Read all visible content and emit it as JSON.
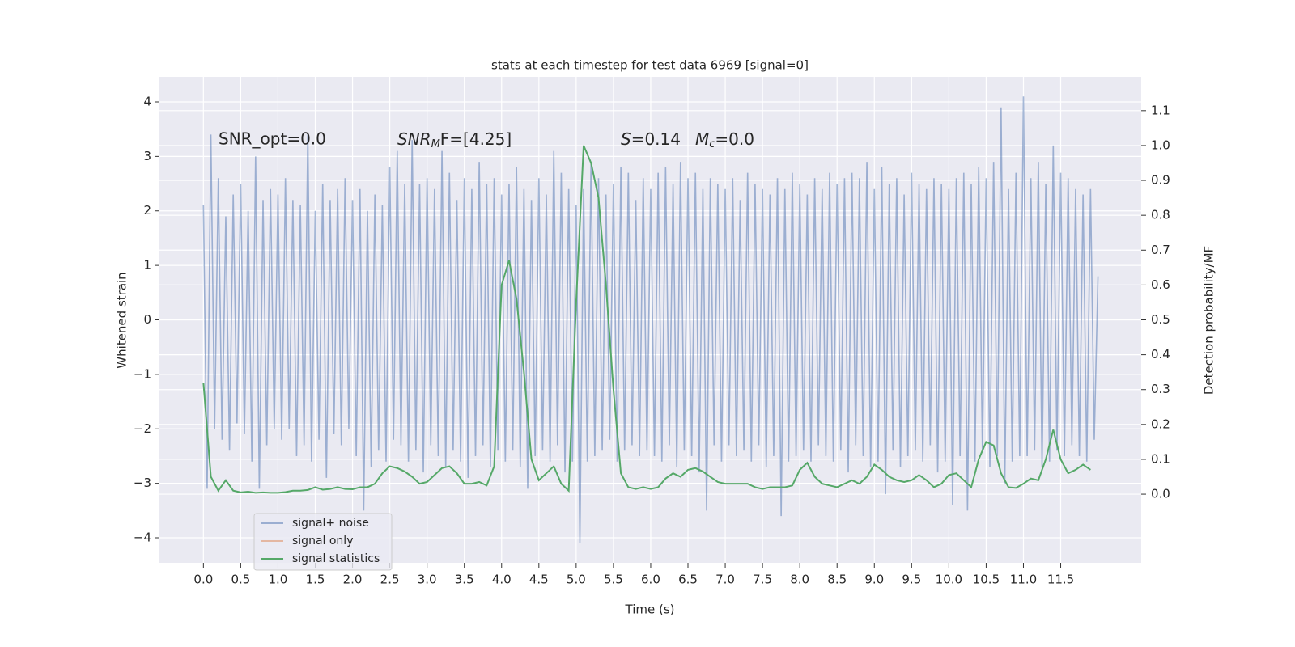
{
  "chart_data": {
    "type": "line",
    "title": "stats at each timestep for test data 6969 [signal=0]",
    "xlabel": "Time (s)",
    "ylabel": "Whitened strain",
    "y2label": "Detection probability/MF",
    "annotations": [
      "SNR_opt=0.0",
      [
        "SNR",
        "M",
        "F=[4.25]"
      ],
      [
        "S",
        "=0.14"
      ],
      [
        "M",
        "c",
        "=0.0"
      ]
    ],
    "xlim": [
      -0.59,
      12.58
    ],
    "ylim": [
      -4.46,
      4.46
    ],
    "y2lim": [
      -0.197,
      1.197
    ],
    "xticks": [
      {
        "value": 0,
        "label": "0.0"
      },
      {
        "value": 0.5,
        "label": "0.5"
      },
      {
        "value": 1,
        "label": "1.0"
      },
      {
        "value": 1.5,
        "label": "1.5"
      },
      {
        "value": 2,
        "label": "2.0"
      },
      {
        "value": 2.5,
        "label": "2.5"
      },
      {
        "value": 3,
        "label": "3.0"
      },
      {
        "value": 3.5,
        "label": "3.5"
      },
      {
        "value": 4,
        "label": "4.0"
      },
      {
        "value": 4.5,
        "label": "4.5"
      },
      {
        "value": 5,
        "label": "5.0"
      },
      {
        "value": 5.5,
        "label": "5.5"
      },
      {
        "value": 6,
        "label": "6.0"
      },
      {
        "value": 6.5,
        "label": "6.5"
      },
      {
        "value": 7,
        "label": "7.0"
      },
      {
        "value": 7.5,
        "label": "7.5"
      },
      {
        "value": 8,
        "label": "8.0"
      },
      {
        "value": 8.5,
        "label": "8.5"
      },
      {
        "value": 9,
        "label": "9.0"
      },
      {
        "value": 9.5,
        "label": "9.5"
      },
      {
        "value": 10,
        "label": "10.0"
      },
      {
        "value": 10.5,
        "label": "10.5"
      },
      {
        "value": 11,
        "label": "11.0"
      },
      {
        "value": 11.5,
        "label": "11.5"
      }
    ],
    "yticks": [
      {
        "value": -4,
        "label": "−4"
      },
      {
        "value": -3,
        "label": "−3"
      },
      {
        "value": -2,
        "label": "−2"
      },
      {
        "value": -1,
        "label": "−1"
      },
      0,
      1,
      2,
      3,
      4
    ],
    "y2ticks": [
      {
        "value": 0,
        "label": "0.0"
      },
      {
        "value": 0.1,
        "label": "0.1"
      },
      {
        "value": 0.2,
        "label": "0.2"
      },
      {
        "value": 0.3,
        "label": "0.3"
      },
      {
        "value": 0.4,
        "label": "0.4"
      },
      {
        "value": 0.5,
        "label": "0.5"
      },
      {
        "value": 0.6,
        "label": "0.6"
      },
      {
        "value": 0.7,
        "label": "0.7"
      },
      {
        "value": 0.8,
        "label": "0.8"
      },
      {
        "value": 0.9,
        "label": "0.9"
      },
      {
        "value": 1,
        "label": "1.0"
      },
      {
        "value": 1.1,
        "label": "1.1"
      }
    ],
    "grid": true,
    "legend": "lower left",
    "series": [
      {
        "name": "signal+ noise",
        "color": "#4c72b0",
        "x": [
          0,
          0.05,
          0.1,
          0.15,
          0.2,
          0.25,
          0.3,
          0.35,
          0.4,
          0.45,
          0.5,
          0.55,
          0.6,
          0.65,
          0.7,
          0.75,
          0.8,
          0.85,
          0.9,
          0.95,
          1,
          1.05,
          1.1,
          1.15,
          1.2,
          1.25,
          1.3,
          1.35,
          1.4,
          1.45,
          1.5,
          1.55,
          1.6,
          1.65,
          1.7,
          1.75,
          1.8,
          1.85,
          1.9,
          1.95,
          2,
          2.05,
          2.1,
          2.15,
          2.2,
          2.25,
          2.3,
          2.35,
          2.4,
          2.45,
          2.5,
          2.55,
          2.6,
          2.65,
          2.7,
          2.75,
          2.8,
          2.85,
          2.9,
          2.95,
          3,
          3.05,
          3.1,
          3.15,
          3.2,
          3.25,
          3.3,
          3.35,
          3.4,
          3.45,
          3.5,
          3.55,
          3.6,
          3.65,
          3.7,
          3.75,
          3.8,
          3.85,
          3.9,
          3.95,
          4,
          4.05,
          4.1,
          4.15,
          4.2,
          4.25,
          4.3,
          4.35,
          4.4,
          4.45,
          4.5,
          4.55,
          4.6,
          4.65,
          4.7,
          4.75,
          4.8,
          4.85,
          4.9,
          4.95,
          5,
          5.05,
          5.1,
          5.15,
          5.2,
          5.25,
          5.3,
          5.35,
          5.4,
          5.45,
          5.5,
          5.55,
          5.6,
          5.65,
          5.7,
          5.75,
          5.8,
          5.85,
          5.9,
          5.95,
          6,
          6.05,
          6.1,
          6.15,
          6.2,
          6.25,
          6.3,
          6.35,
          6.4,
          6.45,
          6.5,
          6.55,
          6.6,
          6.65,
          6.7,
          6.75,
          6.8,
          6.85,
          6.9,
          6.95,
          7,
          7.05,
          7.1,
          7.15,
          7.2,
          7.25,
          7.3,
          7.35,
          7.4,
          7.45,
          7.5,
          7.55,
          7.6,
          7.65,
          7.7,
          7.75,
          7.8,
          7.85,
          7.9,
          7.95,
          8,
          8.05,
          8.1,
          8.15,
          8.2,
          8.25,
          8.3,
          8.35,
          8.4,
          8.45,
          8.5,
          8.55,
          8.6,
          8.65,
          8.7,
          8.75,
          8.8,
          8.85,
          8.9,
          8.95,
          9,
          9.05,
          9.1,
          9.15,
          9.2,
          9.25,
          9.3,
          9.35,
          9.4,
          9.45,
          9.5,
          9.55,
          9.6,
          9.65,
          9.7,
          9.75,
          9.8,
          9.85,
          9.9,
          9.95,
          10,
          10.05,
          10.1,
          10.15,
          10.2,
          10.25,
          10.3,
          10.35,
          10.4,
          10.45,
          10.5,
          10.55,
          10.6,
          10.65,
          10.7,
          10.75,
          10.8,
          10.85,
          10.9,
          10.95,
          11,
          11.05,
          11.1,
          11.15,
          11.2,
          11.25,
          11.3,
          11.35,
          11.4,
          11.45,
          11.5,
          11.55,
          11.6,
          11.65,
          11.7,
          11.75,
          11.8,
          11.85,
          11.9,
          11.95,
          12
        ],
        "values": [
          2.1,
          -3.1,
          3.4,
          -2.0,
          2.6,
          -2.2,
          1.9,
          -2.4,
          2.3,
          -1.9,
          2.5,
          -2.1,
          2.0,
          -2.6,
          3.0,
          -3.1,
          2.2,
          -2.3,
          2.4,
          -2.0,
          2.3,
          -2.2,
          2.6,
          -2.0,
          2.2,
          -2.5,
          2.1,
          -2.3,
          3.4,
          -2.6,
          2.0,
          -2.2,
          2.5,
          -2.9,
          2.2,
          -2.1,
          2.4,
          -2.3,
          2.6,
          -2.0,
          2.2,
          -2.5,
          2.4,
          -3.5,
          2.0,
          -2.7,
          2.3,
          -2.4,
          2.1,
          -2.6,
          2.8,
          -2.2,
          3.1,
          -2.3,
          2.5,
          -2.6,
          3.3,
          -2.4,
          2.5,
          -2.8,
          2.6,
          -2.3,
          2.4,
          -2.5,
          3.1,
          -2.7,
          2.7,
          -2.4,
          2.2,
          -2.6,
          2.6,
          -2.9,
          2.4,
          -2.5,
          2.9,
          -2.3,
          2.5,
          -2.7,
          2.6,
          -2.4,
          2.3,
          -2.6,
          2.5,
          -2.4,
          2.8,
          -2.7,
          2.4,
          -3.1,
          2.2,
          -2.5,
          2.6,
          -2.4,
          2.3,
          -2.6,
          3.1,
          -2.3,
          2.7,
          -2.8,
          2.4,
          -2.6,
          2.1,
          -4.1,
          2.4,
          -2.6,
          2.9,
          -2.5,
          2.6,
          -2.4,
          2.3,
          -2.2,
          2.5,
          -2.6,
          2.8,
          -2.4,
          2.7,
          -2.3,
          2.2,
          -2.5,
          2.6,
          -2.4,
          2.4,
          -2.5,
          2.7,
          -2.6,
          2.8,
          -2.3,
          2.5,
          -2.7,
          2.9,
          -2.4,
          2.6,
          -2.5,
          2.7,
          -2.8,
          2.4,
          -3.5,
          2.6,
          -2.3,
          2.5,
          -2.6,
          2.4,
          -2.3,
          2.6,
          -2.5,
          2.2,
          -2.4,
          2.7,
          -2.6,
          2.5,
          -2.3,
          2.4,
          -2.7,
          2.3,
          -2.5,
          2.6,
          -3.6,
          2.4,
          -2.6,
          2.7,
          -2.5,
          2.5,
          -2.4,
          2.3,
          -2.6,
          2.6,
          -2.3,
          2.4,
          -2.5,
          2.7,
          -2.6,
          2.5,
          -2.4,
          2.6,
          -2.8,
          2.7,
          -2.3,
          2.6,
          -2.5,
          2.9,
          -2.7,
          2.4,
          -2.6,
          2.8,
          -3.2,
          2.5,
          -2.4,
          2.6,
          -2.7,
          2.3,
          -2.5,
          2.7,
          -2.4,
          2.5,
          -2.6,
          2.4,
          -2.3,
          2.6,
          -2.8,
          2.5,
          -2.6,
          2.4,
          -3.4,
          2.6,
          -2.5,
          2.7,
          -3.5,
          2.5,
          -2.6,
          2.8,
          -2.4,
          2.6,
          -2.7,
          2.9,
          -2.5,
          3.9,
          -3.0,
          2.4,
          -2.6,
          2.7,
          -2.5,
          4.1,
          -2.5,
          2.6,
          -2.4,
          2.9,
          -2.7,
          2.5,
          -2.6,
          3.2,
          -2.4,
          2.7,
          -2.5,
          2.6,
          -2.3,
          2.4,
          -2.5,
          2.3,
          -2.6,
          2.4,
          -2.2,
          0.8
        ]
      },
      {
        "name": "signal only",
        "color": "#dd8452"
      },
      {
        "name": "signal statistics",
        "color": "#55a868",
        "axis": "y2",
        "x": [
          0,
          0.1,
          0.2,
          0.3,
          0.4,
          0.5,
          0.6,
          0.7,
          0.8,
          0.9,
          1,
          1.1,
          1.2,
          1.3,
          1.4,
          1.5,
          1.6,
          1.7,
          1.8,
          1.9,
          2,
          2.1,
          2.2,
          2.3,
          2.4,
          2.5,
          2.6,
          2.7,
          2.8,
          2.9,
          3,
          3.1,
          3.2,
          3.3,
          3.4,
          3.5,
          3.6,
          3.7,
          3.8,
          3.9,
          4,
          4.1,
          4.2,
          4.3,
          4.4,
          4.5,
          4.6,
          4.7,
          4.8,
          4.9,
          5,
          5.1,
          5.2,
          5.3,
          5.4,
          5.5,
          5.6,
          5.7,
          5.8,
          5.9,
          6,
          6.1,
          6.2,
          6.3,
          6.4,
          6.5,
          6.6,
          6.7,
          6.8,
          6.9,
          7,
          7.1,
          7.2,
          7.3,
          7.4,
          7.5,
          7.6,
          7.7,
          7.8,
          7.9,
          8,
          8.1,
          8.2,
          8.3,
          8.4,
          8.5,
          8.6,
          8.7,
          8.8,
          8.9,
          9,
          9.1,
          9.2,
          9.3,
          9.4,
          9.5,
          9.6,
          9.7,
          9.8,
          9.9,
          10,
          10.1,
          10.2,
          10.3,
          10.4,
          10.5,
          10.6,
          10.7,
          10.8,
          10.9,
          11,
          11.1,
          11.2,
          11.3,
          11.4,
          11.5,
          11.6,
          11.7,
          11.8,
          11.9
        ],
        "values": [
          0.32,
          0.05,
          0.01,
          0.04,
          0.01,
          0.005,
          0.007,
          0.004,
          0.005,
          0.004,
          0.004,
          0.006,
          0.01,
          0.01,
          0.012,
          0.02,
          0.013,
          0.015,
          0.02,
          0.015,
          0.014,
          0.02,
          0.02,
          0.03,
          0.06,
          0.08,
          0.075,
          0.065,
          0.05,
          0.03,
          0.035,
          0.055,
          0.075,
          0.08,
          0.06,
          0.03,
          0.03,
          0.035,
          0.025,
          0.08,
          0.6,
          0.67,
          0.56,
          0.35,
          0.1,
          0.04,
          0.06,
          0.08,
          0.03,
          0.01,
          0.55,
          1.0,
          0.95,
          0.85,
          0.6,
          0.3,
          0.06,
          0.02,
          0.015,
          0.02,
          0.015,
          0.02,
          0.045,
          0.06,
          0.05,
          0.07,
          0.075,
          0.065,
          0.05,
          0.035,
          0.03,
          0.03,
          0.03,
          0.03,
          0.02,
          0.015,
          0.02,
          0.02,
          0.02,
          0.025,
          0.07,
          0.09,
          0.05,
          0.03,
          0.025,
          0.02,
          0.03,
          0.04,
          0.03,
          0.05,
          0.085,
          0.07,
          0.05,
          0.04,
          0.035,
          0.04,
          0.055,
          0.04,
          0.02,
          0.03,
          0.055,
          0.06,
          0.04,
          0.02,
          0.1,
          0.15,
          0.14,
          0.06,
          0.02,
          0.018,
          0.03,
          0.045,
          0.04,
          0.1,
          0.185,
          0.1,
          0.06,
          0.07,
          0.085,
          0.07
        ]
      }
    ]
  }
}
